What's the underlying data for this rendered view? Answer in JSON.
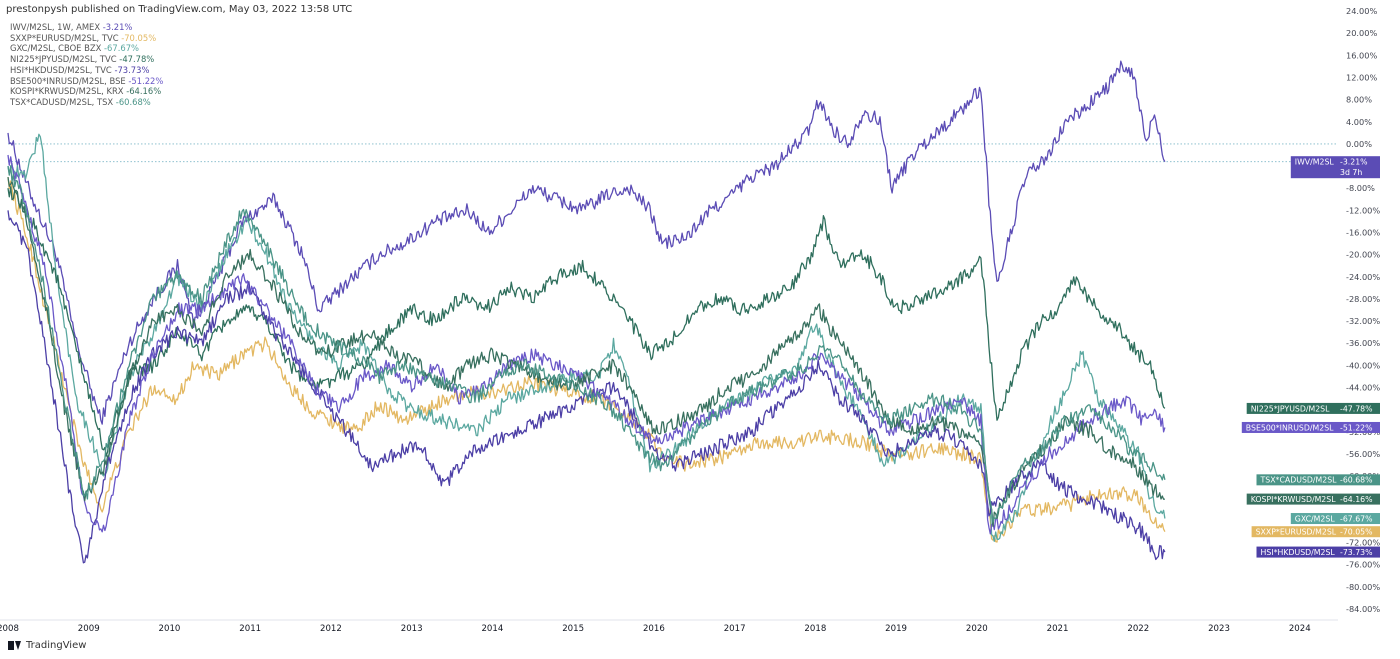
{
  "header": {
    "published": "prestonpysh published on TradingView.com, May 03, 2022 13:58 UTC"
  },
  "footer": {
    "brand": "TradingView",
    "logo_icon": "tradingview-logo-icon"
  },
  "chart_data": {
    "type": "line",
    "title": "",
    "xlabel": "",
    "ylabel": "",
    "grid": false,
    "legend_placement": "top-left",
    "x_ticks": [
      "2008",
      "2009",
      "2010",
      "2011",
      "2012",
      "2013",
      "2014",
      "2015",
      "2016",
      "2017",
      "2018",
      "2019",
      "2020",
      "2021",
      "2022",
      "2023",
      "2024"
    ],
    "y_ticks": [
      "24.00%",
      "20.00%",
      "16.00%",
      "12.00%",
      "8.00%",
      "4.00%",
      "0.00%",
      "-4.00%",
      "-8.00%",
      "-12.00%",
      "-16.00%",
      "-20.00%",
      "-24.00%",
      "-28.00%",
      "-32.00%",
      "-36.00%",
      "-40.00%",
      "-44.00%",
      "-48.00%",
      "-52.00%",
      "-56.00%",
      "-60.00%",
      "-64.00%",
      "-68.00%",
      "-72.00%",
      "-76.00%",
      "-80.00%",
      "-84.00%"
    ],
    "ylim": [
      -86,
      26
    ],
    "xlim": [
      2008.0,
      2024.3
    ],
    "countdown": "3d 7h",
    "series": [
      {
        "name": "IWV/M2SL",
        "legend": "IWV/M2SL, 1W, AMEX",
        "last": "-3.21%",
        "color": "#5b4cb5",
        "x": [
          2008.0,
          2008.25,
          2008.6,
          2008.85,
          2009.15,
          2009.5,
          2009.8,
          2010.1,
          2010.3,
          2010.6,
          2010.9,
          2011.3,
          2011.65,
          2011.85,
          2012.2,
          2012.6,
          2012.9,
          2013.3,
          2013.7,
          2013.95,
          2014.3,
          2014.5,
          2014.8,
          2015.1,
          2015.45,
          2015.7,
          2015.95,
          2016.1,
          2016.4,
          2016.7,
          2016.9,
          2017.2,
          2017.5,
          2017.9,
          2018.05,
          2018.2,
          2018.4,
          2018.6,
          2018.8,
          2018.95,
          2019.2,
          2019.5,
          2019.8,
          2020.05,
          2020.15,
          2020.25,
          2020.35,
          2020.6,
          2020.9,
          2021.1,
          2021.3,
          2021.6,
          2021.8,
          2021.95,
          2022.1,
          2022.2,
          2022.33
        ],
        "values": [
          2,
          -8,
          -20,
          -36,
          -50,
          -36,
          -28,
          -22,
          -32,
          -24,
          -14,
          -10,
          -20,
          -30,
          -25,
          -20,
          -18,
          -14,
          -12,
          -16,
          -11,
          -8,
          -10,
          -12,
          -9,
          -8,
          -12,
          -18,
          -17,
          -12,
          -10,
          -6,
          -4,
          2,
          8,
          3,
          0,
          6,
          4,
          -8,
          -2,
          2,
          6,
          10,
          -10,
          -26,
          -20,
          -6,
          -2,
          4,
          6,
          10,
          14,
          12,
          0,
          6,
          -3.21
        ]
      },
      {
        "name": "SXXP*EURUSD/M2SL",
        "legend": "SXXP*EURUSD/M2SL, TVC",
        "last": "-70.05%",
        "color": "#e3b862",
        "x": [
          2008.0,
          2008.3,
          2008.6,
          2008.9,
          2009.15,
          2009.5,
          2009.8,
          2010.1,
          2010.3,
          2010.6,
          2010.9,
          2011.2,
          2011.5,
          2011.75,
          2012.0,
          2012.3,
          2012.6,
          2012.9,
          2013.3,
          2013.6,
          2014.0,
          2014.4,
          2014.7,
          2015.0,
          2015.3,
          2015.6,
          2015.9,
          2016.1,
          2016.4,
          2016.7,
          2017.0,
          2017.3,
          2017.7,
          2018.0,
          2018.3,
          2018.6,
          2018.9,
          2019.2,
          2019.5,
          2019.8,
          2020.05,
          2020.2,
          2020.3,
          2020.6,
          2020.9,
          2021.2,
          2021.5,
          2021.8,
          2022.0,
          2022.15,
          2022.33
        ],
        "values": [
          -6,
          -20,
          -38,
          -56,
          -66,
          -52,
          -44,
          -46,
          -40,
          -42,
          -38,
          -36,
          -44,
          -48,
          -50,
          -52,
          -47,
          -50,
          -47,
          -45,
          -45,
          -43,
          -44,
          -45,
          -46,
          -48,
          -52,
          -56,
          -58,
          -57,
          -56,
          -54,
          -54,
          -53,
          -53,
          -54,
          -56,
          -56,
          -55,
          -56,
          -57,
          -72,
          -70,
          -66,
          -66,
          -65,
          -63,
          -63,
          -64,
          -67,
          -70.05
        ]
      },
      {
        "name": "GXC/M2SL",
        "legend": "GXC/M2SL, CBOE BZX",
        "last": "-67.67%",
        "color": "#5ba8a0",
        "x": [
          2008.0,
          2008.2,
          2008.4,
          2008.6,
          2008.85,
          2009.2,
          2009.5,
          2009.8,
          2010.1,
          2010.4,
          2010.7,
          2010.95,
          2011.2,
          2011.5,
          2011.8,
          2012.1,
          2012.4,
          2012.7,
          2013.0,
          2013.4,
          2013.8,
          2014.2,
          2014.6,
          2015.0,
          2015.3,
          2015.5,
          2015.7,
          2015.95,
          2016.2,
          2016.5,
          2016.8,
          2017.1,
          2017.5,
          2017.8,
          2018.0,
          2018.15,
          2018.35,
          2018.6,
          2018.85,
          2019.2,
          2019.5,
          2019.8,
          2020.05,
          2020.2,
          2020.3,
          2020.5,
          2020.8,
          2021.05,
          2021.3,
          2021.5,
          2021.8,
          2022.0,
          2022.15,
          2022.33
        ],
        "values": [
          -4,
          -6,
          2,
          -24,
          -46,
          -60,
          -42,
          -34,
          -24,
          -30,
          -20,
          -14,
          -20,
          -30,
          -36,
          -40,
          -36,
          -44,
          -48,
          -50,
          -52,
          -46,
          -44,
          -42,
          -42,
          -36,
          -44,
          -58,
          -56,
          -52,
          -48,
          -46,
          -42,
          -40,
          -32,
          -38,
          -44,
          -50,
          -58,
          -54,
          -50,
          -46,
          -48,
          -72,
          -70,
          -66,
          -54,
          -46,
          -38,
          -46,
          -52,
          -56,
          -64,
          -67.67
        ]
      },
      {
        "name": "NI225*JPYUSD/M2SL",
        "legend": "NI225*JPYUSD/M2SL, TVC",
        "last": "-47.78%",
        "color": "#2f6f5d",
        "x": [
          2008.0,
          2008.3,
          2008.6,
          2008.9,
          2009.2,
          2009.5,
          2009.8,
          2010.1,
          2010.4,
          2010.7,
          2011.0,
          2011.2,
          2011.5,
          2011.8,
          2012.1,
          2012.4,
          2012.7,
          2013.0,
          2013.3,
          2013.6,
          2013.9,
          2014.2,
          2014.5,
          2014.8,
          2015.1,
          2015.4,
          2015.7,
          2015.95,
          2016.2,
          2016.5,
          2016.8,
          2017.1,
          2017.4,
          2017.7,
          2017.95,
          2018.1,
          2018.3,
          2018.6,
          2018.8,
          2019.0,
          2019.3,
          2019.6,
          2019.85,
          2020.05,
          2020.15,
          2020.25,
          2020.35,
          2020.55,
          2020.8,
          2021.0,
          2021.2,
          2021.5,
          2021.8,
          2022.0,
          2022.15,
          2022.33
        ],
        "values": [
          -8,
          -14,
          -24,
          -40,
          -56,
          -42,
          -40,
          -34,
          -38,
          -32,
          -30,
          -32,
          -40,
          -44,
          -42,
          -40,
          -34,
          -30,
          -32,
          -28,
          -30,
          -26,
          -28,
          -24,
          -22,
          -26,
          -32,
          -38,
          -36,
          -30,
          -28,
          -30,
          -28,
          -26,
          -20,
          -14,
          -22,
          -20,
          -24,
          -30,
          -28,
          -26,
          -24,
          -20,
          -36,
          -50,
          -46,
          -38,
          -32,
          -30,
          -24,
          -30,
          -34,
          -38,
          -40,
          -47.78
        ]
      },
      {
        "name": "HSI*HKDUSD/M2SL",
        "legend": "HSI*HKDUSD/M2SL, TVC",
        "last": "-73.73%",
        "color": "#4c3fa6",
        "x": [
          2008.0,
          2008.25,
          2008.5,
          2008.75,
          2008.95,
          2009.2,
          2009.5,
          2009.8,
          2010.1,
          2010.4,
          2010.7,
          2011.0,
          2011.3,
          2011.6,
          2011.9,
          2012.2,
          2012.5,
          2012.8,
          2013.1,
          2013.4,
          2013.7,
          2014.0,
          2014.3,
          2014.6,
          2014.9,
          2015.2,
          2015.5,
          2015.8,
          2016.0,
          2016.3,
          2016.6,
          2016.9,
          2017.2,
          2017.5,
          2017.8,
          2018.05,
          2018.3,
          2018.6,
          2018.9,
          2019.2,
          2019.5,
          2019.8,
          2020.05,
          2020.15,
          2020.3,
          2020.55,
          2020.8,
          2021.05,
          2021.3,
          2021.6,
          2021.85,
          2022.05,
          2022.2,
          2022.33
        ],
        "values": [
          -12,
          -20,
          -40,
          -62,
          -76,
          -60,
          -46,
          -38,
          -34,
          -36,
          -28,
          -26,
          -34,
          -40,
          -46,
          -52,
          -58,
          -56,
          -54,
          -62,
          -56,
          -54,
          -52,
          -50,
          -48,
          -46,
          -44,
          -50,
          -56,
          -58,
          -56,
          -54,
          -52,
          -48,
          -44,
          -40,
          -46,
          -50,
          -56,
          -54,
          -52,
          -54,
          -58,
          -66,
          -64,
          -60,
          -58,
          -62,
          -64,
          -66,
          -68,
          -70,
          -74,
          -73.73
        ]
      },
      {
        "name": "BSE500*INRUSD/M2SL",
        "legend": "BSE500*INRUSD/M2SL, BSE",
        "last": "-51.22%",
        "color": "#6a58c8",
        "x": [
          2008.0,
          2008.2,
          2008.45,
          2008.7,
          2008.95,
          2009.2,
          2009.5,
          2009.8,
          2010.1,
          2010.4,
          2010.7,
          2010.9,
          2011.2,
          2011.5,
          2011.8,
          2012.1,
          2012.4,
          2012.7,
          2013.0,
          2013.3,
          2013.6,
          2013.9,
          2014.2,
          2014.5,
          2014.8,
          2015.1,
          2015.4,
          2015.7,
          2016.0,
          2016.3,
          2016.6,
          2016.9,
          2017.2,
          2017.5,
          2017.8,
          2018.05,
          2018.3,
          2018.6,
          2018.9,
          2019.2,
          2019.5,
          2019.8,
          2020.05,
          2020.15,
          2020.3,
          2020.6,
          2020.9,
          2021.1,
          2021.35,
          2021.6,
          2021.85,
          2022.05,
          2022.2,
          2022.33
        ],
        "values": [
          -2,
          -10,
          -22,
          -42,
          -66,
          -70,
          -50,
          -38,
          -30,
          -30,
          -26,
          -24,
          -30,
          -36,
          -44,
          -48,
          -42,
          -40,
          -44,
          -40,
          -46,
          -44,
          -40,
          -38,
          -40,
          -42,
          -46,
          -50,
          -54,
          -52,
          -50,
          -48,
          -46,
          -44,
          -42,
          -38,
          -42,
          -46,
          -52,
          -50,
          -48,
          -46,
          -50,
          -70,
          -68,
          -62,
          -56,
          -54,
          -50,
          -48,
          -46,
          -50,
          -48,
          -51.22
        ]
      },
      {
        "name": "KOSPI*KRWUSD/M2SL",
        "legend": "KOSPI*KRWUSD/M2SL, KRX",
        "last": "-64.16%",
        "color": "#38705f",
        "x": [
          2008.0,
          2008.2,
          2008.45,
          2008.7,
          2008.95,
          2009.2,
          2009.5,
          2009.8,
          2010.1,
          2010.4,
          2010.7,
          2011.0,
          2011.3,
          2011.6,
          2011.9,
          2012.2,
          2012.5,
          2012.8,
          2013.1,
          2013.4,
          2013.7,
          2014.0,
          2014.3,
          2014.6,
          2014.9,
          2015.2,
          2015.5,
          2015.8,
          2016.0,
          2016.3,
          2016.6,
          2016.9,
          2017.2,
          2017.5,
          2017.8,
          2018.05,
          2018.3,
          2018.6,
          2018.9,
          2019.2,
          2019.5,
          2019.8,
          2020.05,
          2020.2,
          2020.35,
          2020.6,
          2020.9,
          2021.1,
          2021.4,
          2021.7,
          2021.95,
          2022.15,
          2022.33
        ],
        "values": [
          -6,
          -12,
          -28,
          -48,
          -64,
          -58,
          -42,
          -32,
          -30,
          -34,
          -24,
          -20,
          -26,
          -34,
          -38,
          -36,
          -34,
          -38,
          -40,
          -44,
          -40,
          -38,
          -40,
          -42,
          -44,
          -42,
          -40,
          -46,
          -52,
          -50,
          -48,
          -44,
          -42,
          -38,
          -34,
          -30,
          -36,
          -42,
          -50,
          -52,
          -50,
          -52,
          -54,
          -68,
          -64,
          -58,
          -54,
          -50,
          -52,
          -56,
          -58,
          -62,
          -64.16
        ]
      },
      {
        "name": "TSX*CADUSD/M2SL",
        "legend": "TSX*CADUSD/M2SL, TSX",
        "last": "-60.68%",
        "color": "#4a9487",
        "x": [
          2008.0,
          2008.2,
          2008.45,
          2008.7,
          2008.95,
          2009.2,
          2009.5,
          2009.8,
          2010.1,
          2010.4,
          2010.7,
          2010.9,
          2011.1,
          2011.4,
          2011.7,
          2012.0,
          2012.3,
          2012.6,
          2012.9,
          2013.2,
          2013.5,
          2013.8,
          2014.1,
          2014.4,
          2014.7,
          2015.0,
          2015.3,
          2015.6,
          2015.9,
          2016.1,
          2016.4,
          2016.7,
          2017.0,
          2017.3,
          2017.6,
          2017.9,
          2018.1,
          2018.35,
          2018.6,
          2018.9,
          2019.2,
          2019.5,
          2019.8,
          2020.05,
          2020.2,
          2020.35,
          2020.6,
          2020.9,
          2021.1,
          2021.4,
          2021.7,
          2021.95,
          2022.15,
          2022.33
        ],
        "values": [
          -4,
          -10,
          -26,
          -46,
          -64,
          -56,
          -40,
          -28,
          -24,
          -28,
          -18,
          -12,
          -16,
          -24,
          -32,
          -36,
          -38,
          -42,
          -40,
          -42,
          -44,
          -46,
          -42,
          -40,
          -42,
          -44,
          -46,
          -50,
          -56,
          -58,
          -54,
          -50,
          -46,
          -44,
          -42,
          -40,
          -36,
          -40,
          -46,
          -50,
          -48,
          -46,
          -48,
          -52,
          -68,
          -64,
          -58,
          -54,
          -50,
          -48,
          -52,
          -56,
          -58,
          -60.68
        ]
      }
    ]
  }
}
